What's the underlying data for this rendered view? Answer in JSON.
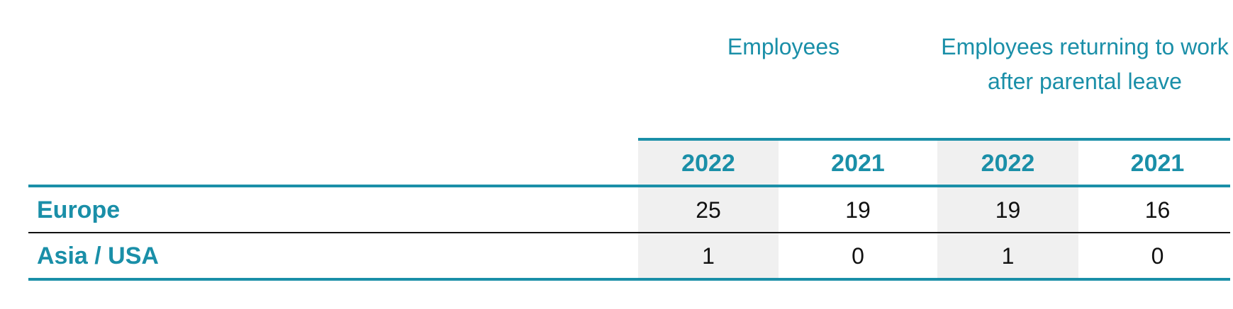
{
  "table": {
    "group_headers": [
      "Employees",
      "Employees returning to work after parental leave"
    ],
    "years": [
      "2022",
      "2021",
      "2022",
      "2021"
    ],
    "rows": [
      {
        "label": "Europe",
        "values": [
          "25",
          "19",
          "19",
          "16"
        ]
      },
      {
        "label": "Asia / USA",
        "values": [
          "1",
          "0",
          "1",
          "0"
        ]
      }
    ]
  },
  "colors": {
    "accent": "#1a8fa8",
    "shade": "#f0f0f0",
    "text": "#111111"
  }
}
